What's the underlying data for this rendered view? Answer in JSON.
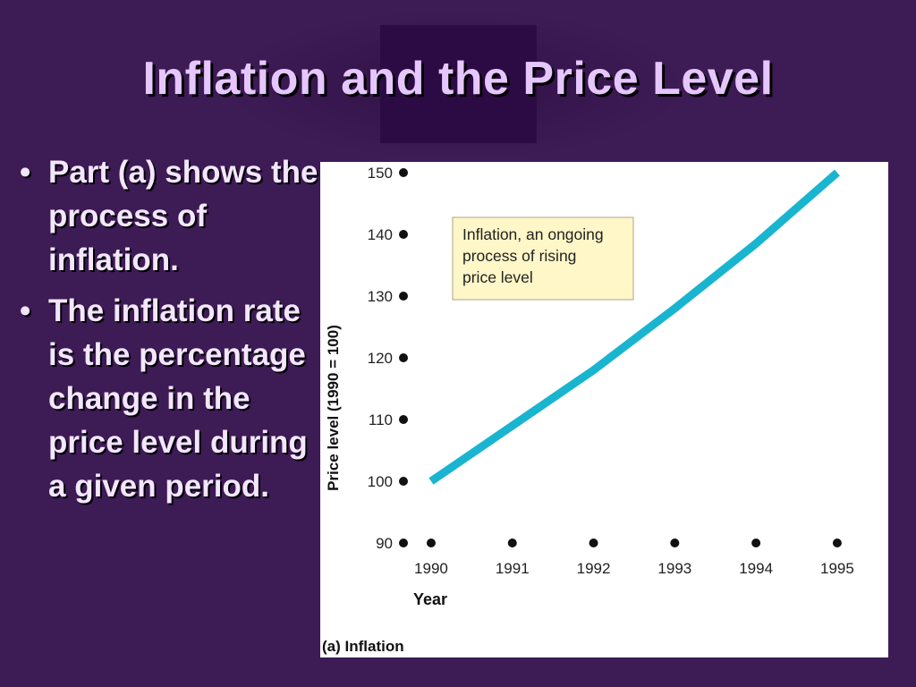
{
  "slide": {
    "title": "Inflation and the Price Level",
    "bullets": [
      {
        "marker": "•",
        "text": "Part (a) shows the process of inflation."
      },
      {
        "marker": "•",
        "text": "The inflation rate is the percentage change in the price level during a given period."
      }
    ],
    "colors": {
      "background": "#3d1b55",
      "title": "#e6c6ff",
      "text": "#f3e6ff",
      "line": "#19b5d0",
      "annotation_bg": "#fff7c8"
    }
  },
  "chart_data": {
    "type": "line",
    "caption": "(a) Inflation",
    "xlabel": "Year",
    "ylabel": "Price level (1990 = 100)",
    "x": [
      1990,
      1991,
      1992,
      1993,
      1994,
      1995
    ],
    "x_tick_labels": [
      "1990",
      "1991",
      "1992",
      "1993",
      "1994",
      "1995"
    ],
    "y_ticks": [
      90,
      100,
      110,
      120,
      130,
      140,
      150
    ],
    "y_tick_labels": [
      "90",
      "100",
      "110",
      "120",
      "130",
      "140",
      "150"
    ],
    "xlim": [
      1989.67,
      1995.1
    ],
    "ylim": [
      90,
      150
    ],
    "series": [
      {
        "values": [
          100,
          109,
          118,
          128,
          138.5,
          150
        ]
      }
    ],
    "annotation": {
      "lines": [
        "Inflation, an ongoing",
        "process of rising",
        "price level"
      ]
    },
    "grid": false
  }
}
